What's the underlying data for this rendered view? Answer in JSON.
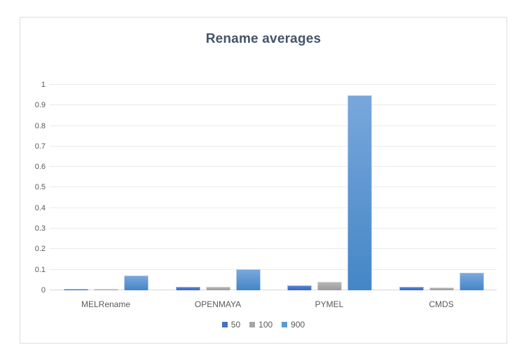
{
  "chart_data": {
    "type": "bar",
    "title": "Rename averages",
    "categories": [
      "MELRename",
      "OPENMAYA",
      "PYMEL",
      "CMDS"
    ],
    "series": [
      {
        "name": "50",
        "color": "#4472C4",
        "gradient_top": "#5181d6",
        "gradient_bottom": "#3b66be",
        "values": [
          0.007,
          0.016,
          0.024,
          0.018
        ]
      },
      {
        "name": "100",
        "color": "#A5A5A5",
        "gradient_top": "#b5b5b5",
        "gradient_bottom": "#9b9b9b",
        "values": [
          0.008,
          0.018,
          0.042,
          0.015
        ]
      },
      {
        "name": "900",
        "color": "#5B9BD5",
        "gradient_top": "#79a7dc",
        "gradient_bottom": "#4486c6",
        "values": [
          0.07,
          0.104,
          0.95,
          0.084
        ]
      }
    ],
    "xlabel": "",
    "ylabel": "",
    "ylim": [
      0,
      1
    ],
    "ytick_step": 0.1,
    "ytick_labels": [
      "0",
      "0.1",
      "0.2",
      "0.3",
      "0.4",
      "0.5",
      "0.6",
      "0.7",
      "0.8",
      "0.9",
      "1"
    ],
    "grid": "horizontal",
    "legend_position": "bottom",
    "legend_entries": [
      "50",
      "100",
      "900"
    ]
  },
  "colors": {
    "title_text": "#44546A",
    "axis_text": "#595959",
    "gridline": "#E7EAF0",
    "axis_line": "#CFD7E2",
    "frame_border": "#D9DDE3",
    "background": "#FFFFFF"
  }
}
